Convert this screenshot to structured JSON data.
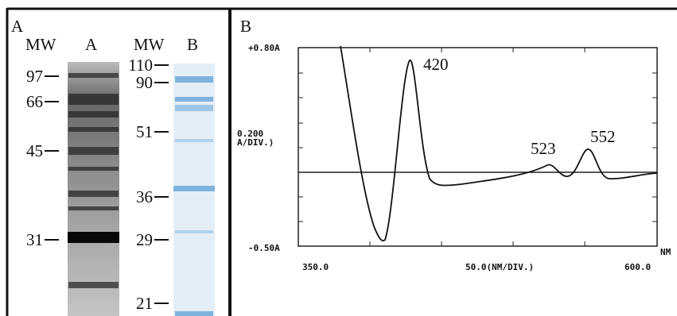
{
  "panel_a": {
    "label": "A",
    "lane_headers": [
      "MW",
      "A",
      "MW",
      "B"
    ],
    "left_markers": [
      "97",
      "66",
      "45",
      "31"
    ],
    "right_markers": [
      "110",
      "90",
      "51",
      "36",
      "29",
      "21"
    ]
  },
  "panel_b": {
    "label": "B",
    "y_labels": [
      "+0.80A",
      "0.200",
      "A/DIV.)",
      "-0.50A"
    ],
    "x_labels": [
      "350.0",
      "50.0(NM/DIV.)",
      "600.0",
      "NM"
    ],
    "peaks": [
      "420",
      "523",
      "552"
    ]
  }
}
